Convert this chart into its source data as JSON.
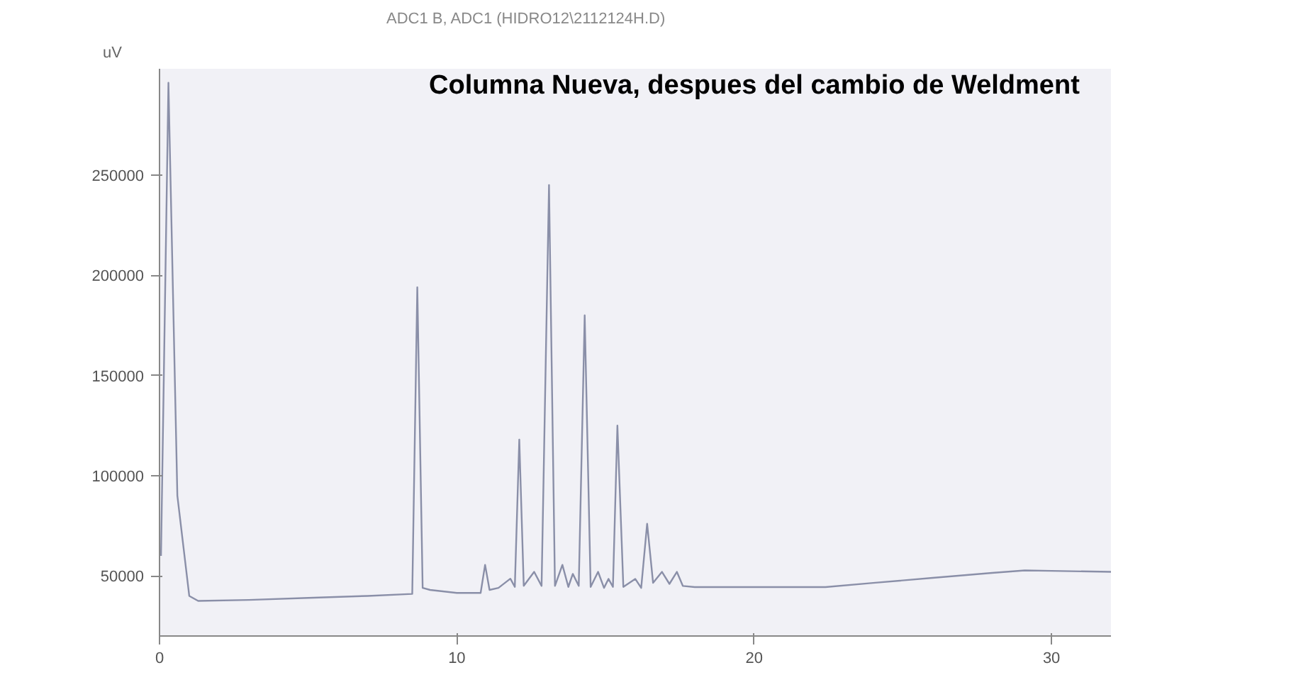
{
  "chart_data": {
    "type": "line",
    "title": "Columna Nueva, despues del cambio de Weldment",
    "subtitle": "ADC1 B, ADC1 (HIDRO12\\2112124H.D)",
    "ylabel": "uV",
    "color": "#8a8fa8",
    "x": [
      0.05,
      0.3,
      0.6,
      1.0,
      1.3,
      3,
      5,
      7,
      8.5,
      8.67,
      8.85,
      9.1,
      10,
      10.8,
      10.95,
      11.1,
      11.4,
      11.8,
      11.95,
      12.1,
      12.25,
      12.6,
      12.85,
      13.1,
      13.3,
      13.55,
      13.75,
      13.9,
      14.1,
      14.3,
      14.5,
      14.75,
      14.95,
      15.1,
      15.25,
      15.4,
      15.6,
      16.0,
      16.2,
      16.4,
      16.6,
      16.9,
      17.15,
      17.4,
      17.6,
      18,
      20,
      22.4,
      24,
      26,
      28,
      29.1,
      30,
      32
    ],
    "values": [
      60000,
      296000,
      90000,
      40000,
      37500,
      38000,
      39000,
      40000,
      41000,
      194000,
      44000,
      43000,
      41500,
      41500,
      55500,
      43000,
      44000,
      48600,
      44500,
      118000,
      45000,
      52000,
      45000,
      245000,
      45000,
      55500,
      44500,
      51000,
      45000,
      180000,
      44500,
      52000,
      44000,
      48500,
      44500,
      125000,
      44500,
      48500,
      44000,
      76000,
      46500,
      52000,
      46000,
      52000,
      45000,
      44400,
      44400,
      44400,
      46500,
      49000,
      51500,
      52700,
      52500,
      52000
    ],
    "xlim": [
      0,
      32
    ],
    "ylim": [
      20000,
      303000
    ],
    "xticks": [
      0,
      10,
      20,
      30
    ],
    "yticks": [
      50000,
      100000,
      150000,
      200000,
      250000
    ],
    "grid": false
  }
}
